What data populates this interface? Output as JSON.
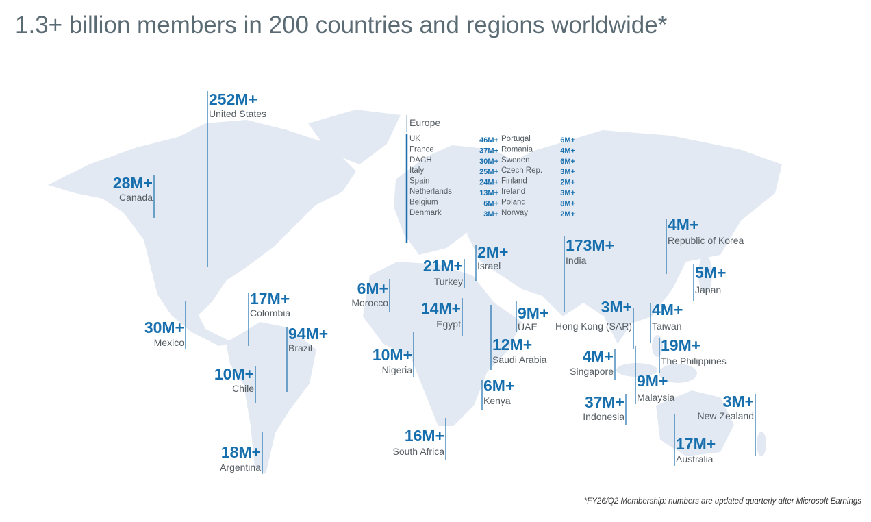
{
  "title": "1.3+ billion members in 200 countries and regions worldwide*",
  "footnote": "*FY26/Q2 Membership: numbers are updated quarterly after Microsoft Earnings",
  "regions": [
    {
      "value": "252M+",
      "name": "United States"
    },
    {
      "value": "28M+",
      "name": "Canada"
    },
    {
      "value": "30M+",
      "name": "Mexico"
    },
    {
      "value": "17M+",
      "name": "Colombia"
    },
    {
      "value": "94M+",
      "name": "Brazil"
    },
    {
      "value": "10M+",
      "name": "Chile"
    },
    {
      "value": "18M+",
      "name": "Argentina"
    },
    {
      "value": "6M+",
      "name": "Morocco"
    },
    {
      "value": "10M+",
      "name": "Nigeria"
    },
    {
      "value": "16M+",
      "name": "South Africa"
    },
    {
      "value": "14M+",
      "name": "Egypt"
    },
    {
      "value": "21M+",
      "name": "Turkey"
    },
    {
      "value": "2M+",
      "name": "Israel"
    },
    {
      "value": "12M+",
      "name": "Saudi Arabia"
    },
    {
      "value": "9M+",
      "name": "UAE"
    },
    {
      "value": "6M+",
      "name": "Kenya"
    },
    {
      "value": "173M+",
      "name": "India"
    },
    {
      "value": "3M+",
      "name": "Hong Kong (SAR)"
    },
    {
      "value": "4M+",
      "name": "Taiwan"
    },
    {
      "value": "4M+",
      "name": "Singapore"
    },
    {
      "value": "19M+",
      "name": "The Philippines"
    },
    {
      "value": "9M+",
      "name": "Malaysia"
    },
    {
      "value": "37M+",
      "name": "Indonesia"
    },
    {
      "value": "3M+",
      "name": "New Zealand"
    },
    {
      "value": "17M+",
      "name": "Australia"
    },
    {
      "value": "4M+",
      "name": "Republic of Korea"
    },
    {
      "value": "5M+",
      "name": "Japan"
    }
  ],
  "europe": {
    "title": "Europe",
    "items": [
      {
        "name": "UK",
        "value": "46M+"
      },
      {
        "name": "France",
        "value": "37M+"
      },
      {
        "name": "DACH",
        "value": "30M+"
      },
      {
        "name": "Italy",
        "value": "25M+"
      },
      {
        "name": "Spain",
        "value": "24M+"
      },
      {
        "name": "Netherlands",
        "value": "13M+"
      },
      {
        "name": "Belgium",
        "value": "6M+"
      },
      {
        "name": "Denmark",
        "value": "3M+"
      },
      {
        "name": "Portugal",
        "value": "6M+"
      },
      {
        "name": "Romania",
        "value": "4M+"
      },
      {
        "name": "Sweden",
        "value": "6M+"
      },
      {
        "name": "Czech Rep.",
        "value": "3M+"
      },
      {
        "name": "Finland",
        "value": "2M+"
      },
      {
        "name": "Ireland",
        "value": "3M+"
      },
      {
        "name": "Poland",
        "value": "8M+"
      },
      {
        "name": "Norway",
        "value": "2M+"
      }
    ]
  }
}
